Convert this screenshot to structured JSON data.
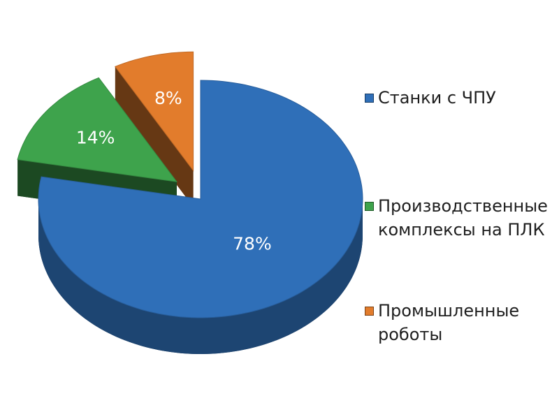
{
  "chart_data": {
    "type": "pie",
    "categories": [
      "Станки с ЧПУ",
      "Производственные комплексы на ПЛК",
      "Промышленные роботы"
    ],
    "values": [
      78,
      14,
      8
    ],
    "value_labels": [
      "78%",
      "14%",
      "8%"
    ],
    "colors": [
      "#2f6fb8",
      "#3ea34c",
      "#e27c2c"
    ],
    "legend": "right"
  }
}
